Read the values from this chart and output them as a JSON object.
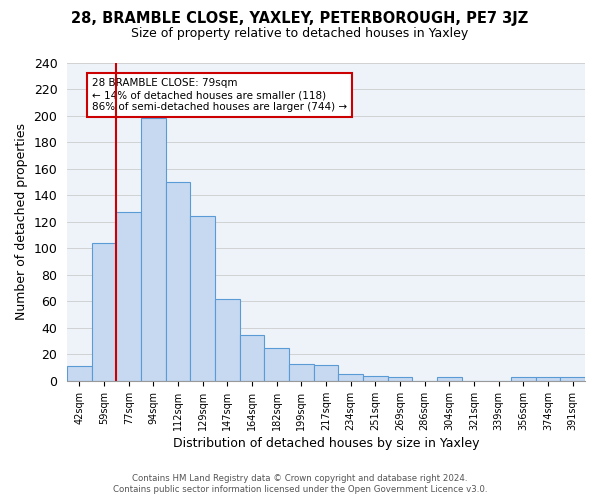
{
  "title": "28, BRAMBLE CLOSE, YAXLEY, PETERBOROUGH, PE7 3JZ",
  "subtitle": "Size of property relative to detached houses in Yaxley",
  "xlabel": "Distribution of detached houses by size in Yaxley",
  "ylabel": "Number of detached properties",
  "bar_labels": [
    "42sqm",
    "59sqm",
    "77sqm",
    "94sqm",
    "112sqm",
    "129sqm",
    "147sqm",
    "164sqm",
    "182sqm",
    "199sqm",
    "217sqm",
    "234sqm",
    "251sqm",
    "269sqm",
    "286sqm",
    "304sqm",
    "321sqm",
    "339sqm",
    "356sqm",
    "374sqm",
    "391sqm"
  ],
  "bar_values": [
    11,
    104,
    127,
    198,
    150,
    124,
    62,
    35,
    25,
    13,
    12,
    5,
    4,
    3,
    0,
    3,
    0,
    0,
    3,
    3,
    3
  ],
  "bar_color": "#c6d9f1",
  "bar_edge_color": "#5b9bd5",
  "ylim": [
    0,
    240
  ],
  "yticks": [
    0,
    20,
    40,
    60,
    80,
    100,
    120,
    140,
    160,
    180,
    200,
    220,
    240
  ],
  "annotation_title": "28 BRAMBLE CLOSE: 79sqm",
  "annotation_line1": "← 14% of detached houses are smaller (118)",
  "annotation_line2": "86% of semi-detached houses are larger (744) →",
  "annotation_box_color": "#ffffff",
  "annotation_box_edge": "#cc0000",
  "vertical_line_color": "#cc0000",
  "vline_x_index": 2,
  "footer_line1": "Contains HM Land Registry data © Crown copyright and database right 2024.",
  "footer_line2": "Contains public sector information licensed under the Open Government Licence v3.0.",
  "background_color": "#ffffff",
  "grid_color": "#cccccc"
}
